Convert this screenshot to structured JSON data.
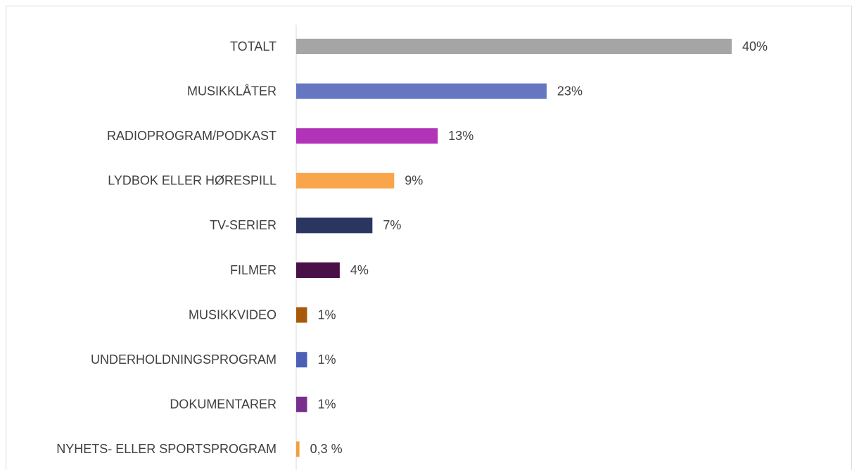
{
  "chart_data": {
    "type": "bar",
    "orientation": "horizontal",
    "categories": [
      "TOTALT",
      "MUSIKKLÅTER",
      "RADIOPROGRAM/PODKAST",
      "LYDBOK ELLER HØRESPILL",
      "TV-SERIER",
      "FILMER",
      "MUSIKKVIDEO",
      "UNDERHOLDNINGSPROGRAM",
      "DOKUMENTARER",
      "NYHETS- ELLER SPORTSPROGRAM"
    ],
    "values": [
      40,
      23,
      13,
      9,
      7,
      4,
      1,
      1,
      1,
      0.3
    ],
    "value_labels": [
      "40%",
      "23%",
      "13%",
      "9%",
      "7%",
      "4%",
      "1%",
      "1%",
      "1%",
      "0,3 %"
    ],
    "colors": [
      "#a5a5a5",
      "#6577c0",
      "#b033b8",
      "#f9a54c",
      "#2a3560",
      "#4a1048",
      "#a85a0a",
      "#4a5fb5",
      "#7a2e8c",
      "#f0a040"
    ]
  }
}
